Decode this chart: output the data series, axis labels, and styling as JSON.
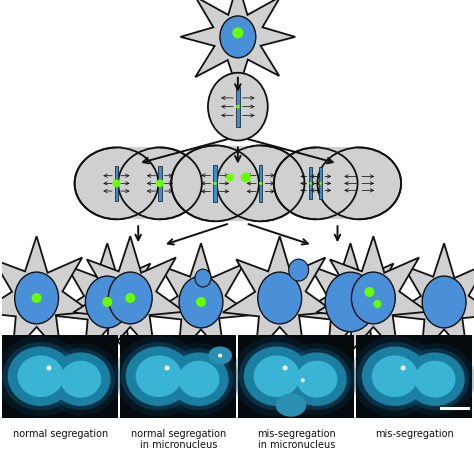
{
  "bg_color": "#ffffff",
  "figure_width": 4.74,
  "figure_height": 4.52,
  "dpi": 100,
  "cell_color": "#d0d0d0",
  "cell_edge": "#111111",
  "nucleus_color": "#4a90d9",
  "nucleus_edge": "#111111",
  "dot_color": "#66ff00",
  "spindle_color": "#3a8fcc",
  "arrow_color": "#111111",
  "photo_bg": "#050a0f",
  "label_fontsize": 7.0,
  "label_color": "#111111",
  "panels": [
    {
      "label": "normal segregation",
      "label2": ""
    },
    {
      "label": "normal segregation",
      "label2": "in micronucleus"
    },
    {
      "label": "mis-segregation",
      "label2": "in micronucleus"
    },
    {
      "label": "mis-segregation",
      "label2": ""
    }
  ]
}
